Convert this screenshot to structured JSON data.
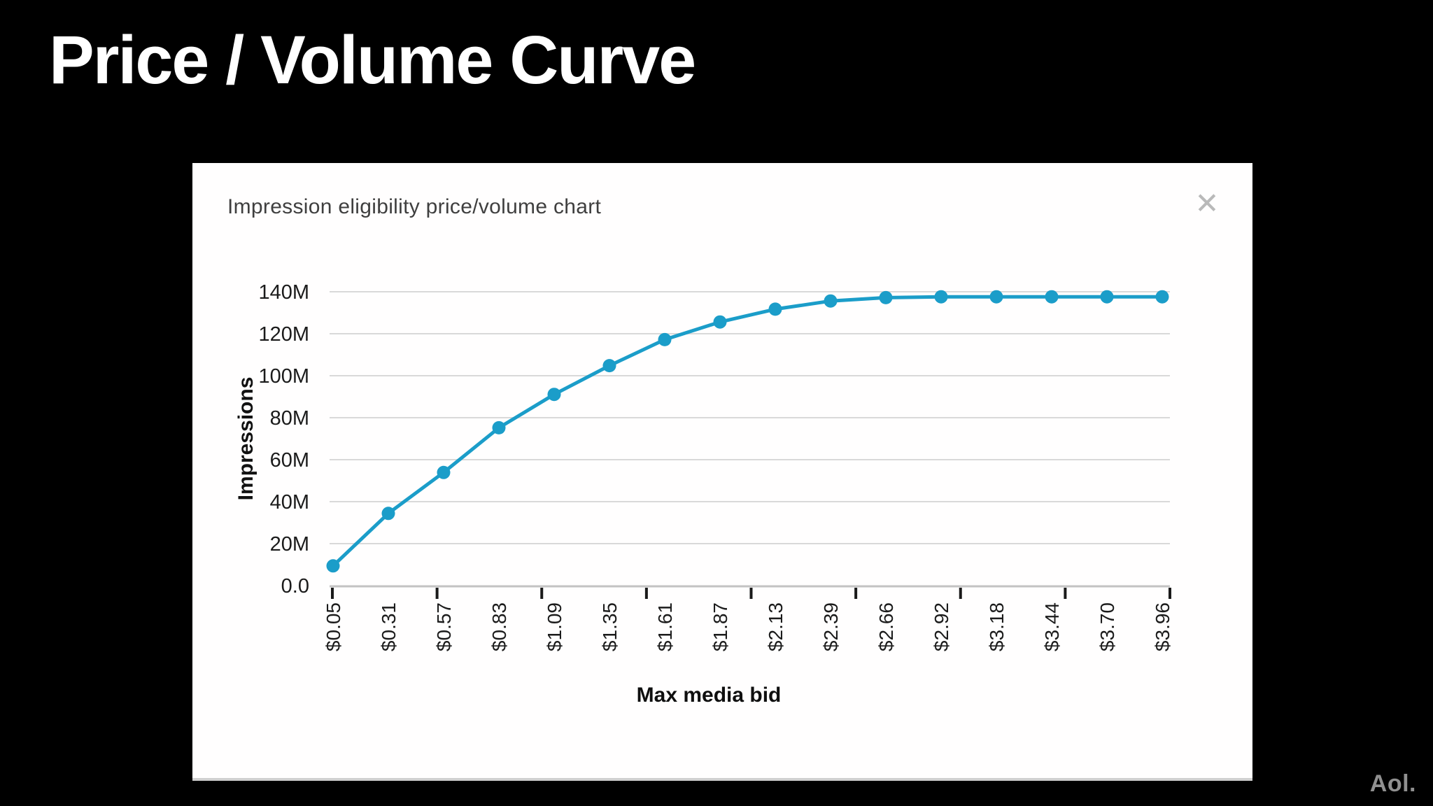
{
  "slide": {
    "title": "Price / Volume Curve",
    "brand": "Aol.",
    "background_color": "#000000"
  },
  "dialog": {
    "title": "Impression eligibility price/volume chart",
    "close_icon": "✕"
  },
  "chart_data": {
    "type": "line",
    "title": "Impression eligibility price/volume chart",
    "xlabel": "Max media bid",
    "ylabel": "Impressions",
    "categories": [
      "$0.05",
      "$0.31",
      "$0.57",
      "$0.83",
      "$1.09",
      "$1.35",
      "$1.61",
      "$1.87",
      "$2.13",
      "$2.39",
      "$2.66",
      "$2.92",
      "$3.18",
      "$3.44",
      "$3.70",
      "$3.96"
    ],
    "values": [
      9.4,
      34.4,
      53.9,
      75.2,
      91.1,
      104.8,
      117.2,
      125.6,
      131.7,
      135.6,
      137.2,
      137.6,
      137.6,
      137.6,
      137.6,
      137.6
    ],
    "unit": "M",
    "ylim": [
      0,
      140
    ],
    "yticks": [
      {
        "value": 0,
        "label": "0.0"
      },
      {
        "value": 20,
        "label": "20M"
      },
      {
        "value": 40,
        "label": "40M"
      },
      {
        "value": 60,
        "label": "60M"
      },
      {
        "value": 80,
        "label": "80M"
      },
      {
        "value": 100,
        "label": "100M"
      },
      {
        "value": 120,
        "label": "120M"
      },
      {
        "value": 140,
        "label": "140M"
      }
    ],
    "grid": true,
    "legend": "none",
    "line_color": "#1b9dc9",
    "gridline_color": "#d9d9d9",
    "axis_color": "#c3c3c3",
    "label_color": "#1b1b1b"
  }
}
